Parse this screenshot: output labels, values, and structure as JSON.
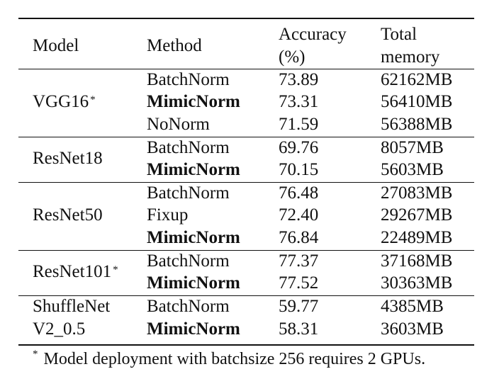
{
  "table": {
    "headers": {
      "model": "Model",
      "method": "Method",
      "accuracy_line1": "Accuracy",
      "accuracy_line2": "(%)",
      "memory_line1": "Total",
      "memory_line2": "memory"
    },
    "groups": [
      {
        "model": "VGG16",
        "model_mark": "*",
        "rows": [
          {
            "method": "BatchNorm",
            "accuracy": "73.89",
            "memory": "62162MB",
            "bold": false
          },
          {
            "method": "MimicNorm",
            "accuracy": "73.31",
            "memory": "56410MB",
            "bold": true
          },
          {
            "method": "NoNorm",
            "accuracy": "71.59",
            "memory": "56388MB",
            "bold": false
          }
        ]
      },
      {
        "model": "ResNet18",
        "model_mark": "",
        "rows": [
          {
            "method": "BatchNorm",
            "accuracy": "69.76",
            "memory": "8057MB",
            "bold": false
          },
          {
            "method": "MimicNorm",
            "accuracy": "70.15",
            "memory": "5603MB",
            "bold": true
          }
        ]
      },
      {
        "model": "ResNet50",
        "model_mark": "",
        "rows": [
          {
            "method": "BatchNorm",
            "accuracy": "76.48",
            "memory": "27083MB",
            "bold": false
          },
          {
            "method": "Fixup",
            "accuracy": "72.40",
            "memory": "29267MB",
            "bold": false
          },
          {
            "method": "MimicNorm",
            "accuracy": "76.84",
            "memory": "22489MB",
            "bold": true
          }
        ]
      },
      {
        "model": "ResNet101",
        "model_mark": "*",
        "rows": [
          {
            "method": "BatchNorm",
            "accuracy": "77.37",
            "memory": "37168MB",
            "bold": false
          },
          {
            "method": "MimicNorm",
            "accuracy": "77.52",
            "memory": "30363MB",
            "bold": true
          }
        ]
      },
      {
        "model": "ShuffleNet",
        "model_line2": "V2_0.5",
        "model_mark": "",
        "rows": [
          {
            "method": "BatchNorm",
            "accuracy": "59.77",
            "memory": "4385MB",
            "bold": false
          },
          {
            "method": "MimicNorm",
            "accuracy": "58.31",
            "memory": "3603MB",
            "bold": true
          }
        ]
      }
    ]
  },
  "footnote": {
    "mark": "*",
    "text": "Model deployment with batchsize 256 requires 2 GPUs."
  }
}
